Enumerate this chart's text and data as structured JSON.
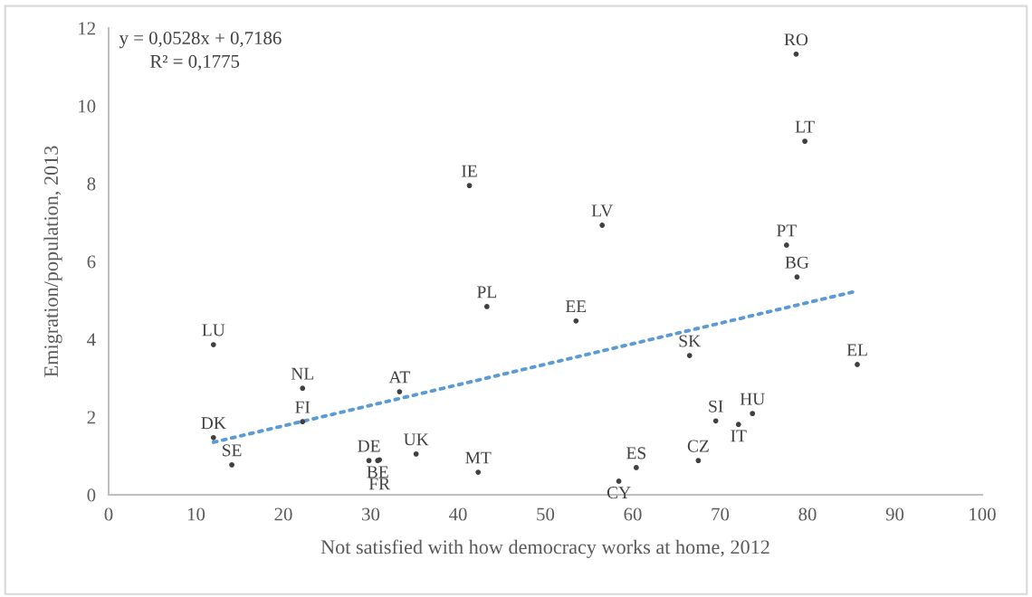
{
  "chart_data": {
    "type": "scatter",
    "xlabel": "Not satisfied with how democracy works at home, 2012",
    "ylabel": "Emigration/population, 2013",
    "xlim": [
      0,
      100
    ],
    "xticks": [
      0,
      10,
      20,
      30,
      40,
      50,
      60,
      70,
      80,
      90,
      100
    ],
    "ylim": [
      0,
      12
    ],
    "yticks": [
      0,
      2,
      4,
      6,
      8,
      10,
      12
    ],
    "grid": false,
    "legend": false,
    "annotations": [
      "y = 0,0528x + 0,7186",
      "R² = 0,1775"
    ],
    "series": [
      {
        "marker": "circle",
        "color": "#404040",
        "x": [
          78.7,
          79.7,
          41.3,
          56.5,
          77.6,
          78.8,
          43.3,
          53.5,
          12.0,
          66.5,
          85.7,
          22.2,
          33.3,
          73.7,
          69.5,
          72.1,
          22.2,
          12.0,
          67.5,
          35.2,
          29.8,
          30.8,
          31.0,
          14.1,
          42.3,
          60.4,
          58.4
        ],
        "values": [
          11.33,
          9.09,
          7.95,
          6.93,
          6.42,
          5.6,
          4.84,
          4.47,
          3.86,
          3.58,
          3.35,
          2.74,
          2.65,
          2.09,
          1.9,
          1.81,
          1.88,
          1.47,
          0.88,
          1.05,
          0.88,
          0.88,
          0.9,
          0.77,
          0.58,
          0.7,
          0.35
        ],
        "value_labels": [
          "RO",
          "LT",
          "IE",
          "LV",
          "PT",
          "BG",
          "PL",
          "EE",
          "LU",
          "SK",
          "EL",
          "NL",
          "AT",
          "HU",
          "SI",
          "IT",
          "FI",
          "DK",
          "CZ",
          "UK",
          "DE",
          "BE",
          "FR",
          "SE",
          "MT",
          "ES",
          "CY"
        ]
      },
      {
        "type": "line",
        "line_style": "dotted",
        "marker": "none",
        "color": "#5b9bd5",
        "x": [
          12,
          85.5
        ],
        "values": [
          1.35,
          5.23
        ]
      }
    ]
  }
}
